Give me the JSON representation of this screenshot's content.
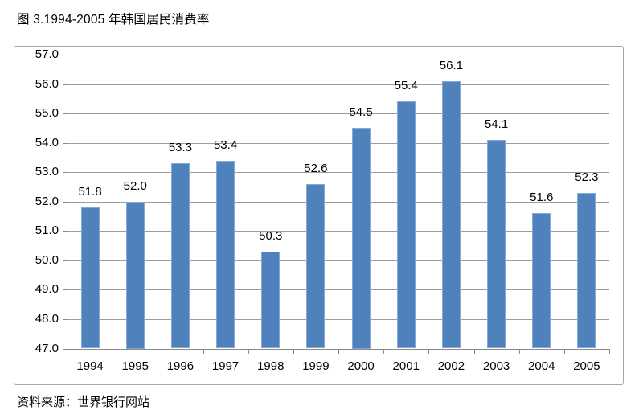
{
  "title": "图 3.1994-2005 年韩国居民消费率",
  "source": "资料来源：世界银行网站",
  "colors": {
    "bar_fill": "#4f81bd",
    "bar_border": "#87aad5",
    "gridline": "#9c9c9c",
    "axis": "#8a8a8a",
    "frame_border": "#a6a6a6",
    "text": "#000000",
    "background": "#ffffff"
  },
  "chart_data": {
    "type": "bar",
    "title": "图 3.1994-2005 年韩国居民消费率",
    "categories": [
      "1994",
      "1995",
      "1996",
      "1997",
      "1998",
      "1999",
      "2000",
      "2001",
      "2002",
      "2003",
      "2004",
      "2005"
    ],
    "values": [
      51.8,
      52.0,
      53.3,
      53.4,
      50.3,
      52.6,
      54.5,
      55.4,
      56.1,
      54.1,
      51.6,
      52.3
    ],
    "value_labels": [
      "51.8",
      "52.0",
      "53.3",
      "53.4",
      "50.3",
      "52.6",
      "54.5",
      "55.4",
      "56.1",
      "54.1",
      "51.6",
      "52.3"
    ],
    "xlabel": "",
    "ylabel": "",
    "ylim": [
      47.0,
      57.0
    ],
    "ytick_step": 1.0,
    "ytick_labels": [
      "47.0",
      "48.0",
      "49.0",
      "50.0",
      "51.0",
      "52.0",
      "53.0",
      "54.0",
      "55.0",
      "56.0",
      "57.0"
    ],
    "grid": true,
    "legend": false,
    "data_labels": true
  }
}
